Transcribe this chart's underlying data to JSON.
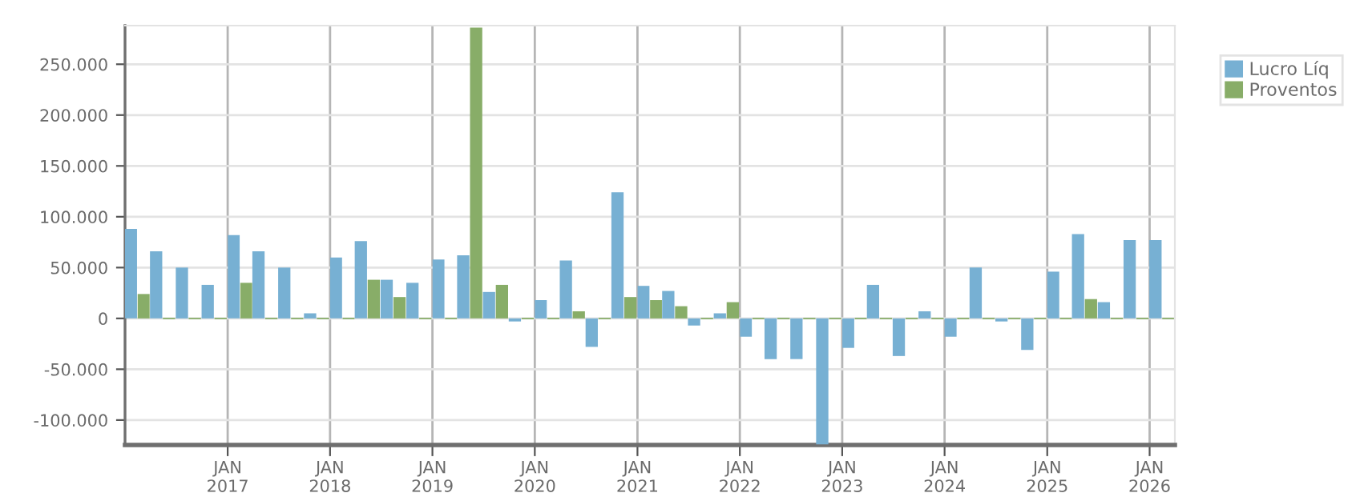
{
  "chart_data": {
    "type": "bar",
    "x": [
      "2016-02-15",
      "2016-05-15",
      "2016-08-15",
      "2016-11-15",
      "2017-02-15",
      "2017-05-15",
      "2017-08-15",
      "2017-11-15",
      "2018-02-15",
      "2018-05-15",
      "2018-08-15",
      "2018-11-15",
      "2019-02-15",
      "2019-05-15",
      "2019-08-15",
      "2019-11-15",
      "2020-02-15",
      "2020-05-15",
      "2020-08-15",
      "2020-11-15",
      "2021-02-15",
      "2021-05-15",
      "2021-08-15",
      "2021-11-15",
      "2022-02-15",
      "2022-05-15",
      "2022-08-15",
      "2022-11-15",
      "2023-02-15",
      "2023-05-15",
      "2023-08-15",
      "2023-11-15",
      "2024-02-15",
      "2024-05-15",
      "2024-08-15",
      "2024-11-15",
      "2025-02-15",
      "2025-05-15",
      "2025-08-15",
      "2025-11-15",
      "2026-02-15"
    ],
    "series": [
      {
        "name": "Lucro Líq",
        "color": "#77b0d3",
        "values": [
          88000,
          66000,
          50000,
          33000,
          82000,
          66000,
          50000,
          5000,
          60000,
          76000,
          38000,
          35000,
          58000,
          62000,
          26000,
          -3000,
          18000,
          57000,
          -28000,
          124000,
          32000,
          27000,
          -7000,
          5000,
          -18000,
          -40000,
          -40000,
          -124000,
          -29000,
          33000,
          -37000,
          7000,
          -18000,
          50000,
          -3000,
          -31000,
          46000,
          83000,
          16000,
          77000,
          77000
        ]
      },
      {
        "name": "Proventos",
        "color": "#88ad68",
        "values": [
          24000,
          0,
          0,
          0,
          35000,
          0,
          0,
          0,
          0,
          38000,
          21000,
          0,
          0,
          286000,
          33000,
          0,
          0,
          7000,
          0,
          21000,
          18000,
          12000,
          0,
          16000,
          0,
          0,
          0,
          0,
          0,
          0,
          0,
          0,
          0,
          0,
          0,
          0,
          0,
          19000,
          0,
          0,
          0
        ]
      }
    ],
    "xlim": [
      "2016-01",
      "2026-04"
    ],
    "xticks": [
      {
        "value": "2017-01",
        "label": "JAN\n2017"
      },
      {
        "value": "2018-01",
        "label": "JAN\n2018"
      },
      {
        "value": "2019-01",
        "label": "JAN\n2019"
      },
      {
        "value": "2020-01",
        "label": "JAN\n2020"
      },
      {
        "value": "2021-01",
        "label": "JAN\n2021"
      },
      {
        "value": "2022-01",
        "label": "JAN\n2022"
      },
      {
        "value": "2023-01",
        "label": "JAN\n2023"
      },
      {
        "value": "2024-01",
        "label": "JAN\n2024"
      },
      {
        "value": "2025-01",
        "label": "JAN\n2025"
      },
      {
        "value": "2026-01",
        "label": "JAN\n2026"
      }
    ],
    "ylim": [
      -124500,
      288000
    ],
    "yticks": [
      {
        "value": -100000,
        "label": "-100.000"
      },
      {
        "value": -50000,
        "label": "-50.000"
      },
      {
        "value": 0,
        "label": "0"
      },
      {
        "value": 50000,
        "label": "50.000"
      },
      {
        "value": 100000,
        "label": "100.000"
      },
      {
        "value": 150000,
        "label": "150.000"
      },
      {
        "value": 200000,
        "label": "200.000"
      },
      {
        "value": 250000,
        "label": "250.000"
      }
    ],
    "grid": true,
    "legend": "top right"
  }
}
